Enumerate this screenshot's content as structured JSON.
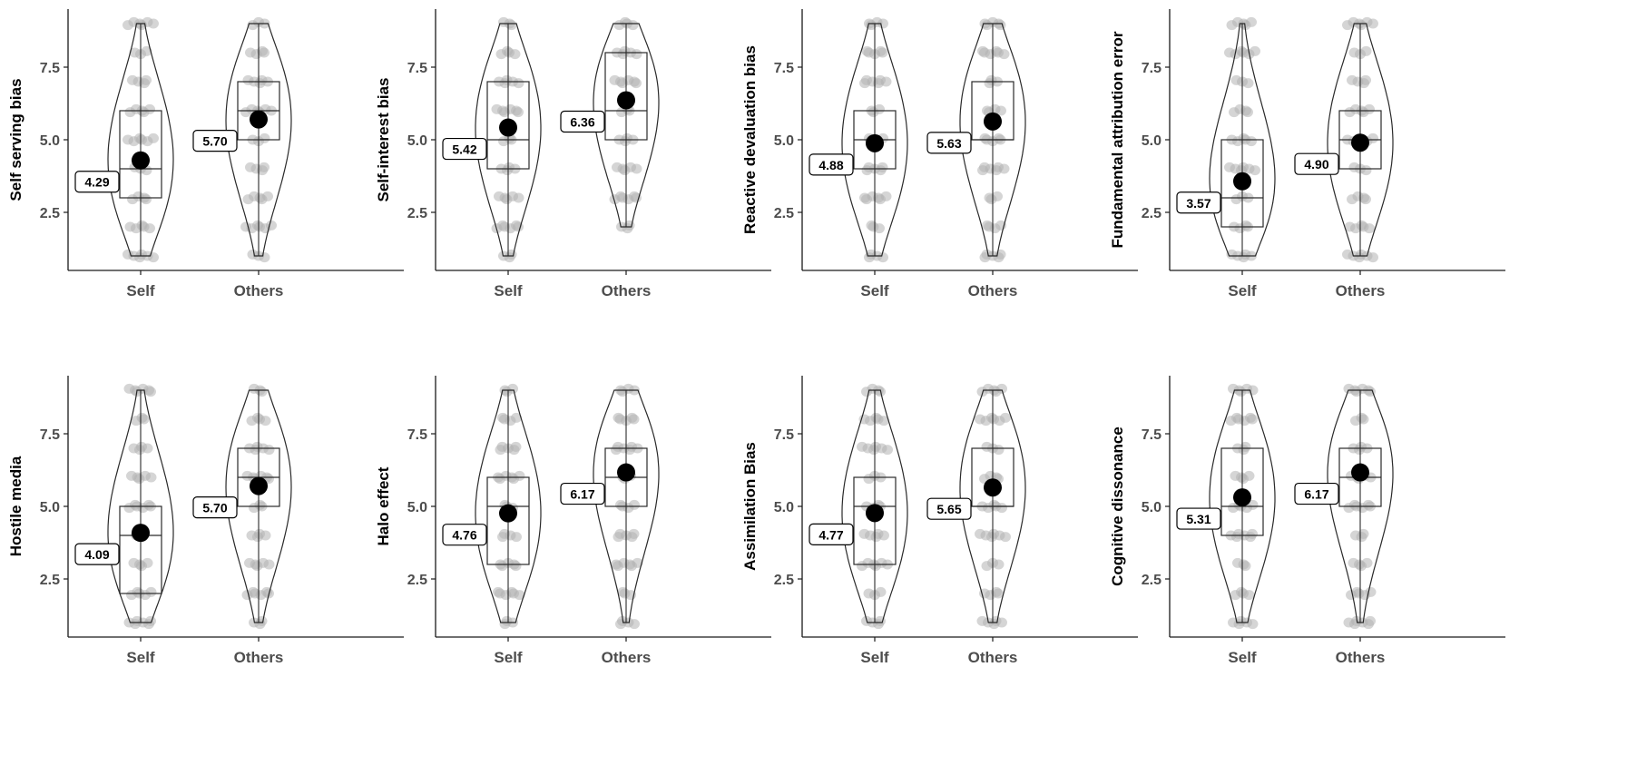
{
  "figure": {
    "colors": {
      "axis": "#1a1a1a",
      "outline": "#2a2a2a",
      "points": "#b3b3b3",
      "mean": "#000000",
      "label_fill": "#ffffff",
      "tick_text": "#4d4d4d"
    }
  },
  "chart_data": [
    {
      "type": "violin",
      "ylabel": "Self serving bias",
      "categories": [
        "Self",
        "Others"
      ],
      "yticks": [
        "2.5",
        "5.0",
        "7.5"
      ],
      "ylim": [
        0.5,
        9.5
      ],
      "means": [
        4.29,
        5.7
      ],
      "mean_labels": [
        "4.29",
        "5.70"
      ],
      "box": [
        {
          "min": 1,
          "q1": 3,
          "median": 4,
          "q3": 6,
          "max": 9
        },
        {
          "min": 1,
          "q1": 5,
          "median": 6,
          "q3": 7,
          "max": 9
        }
      ],
      "points": [
        [
          1,
          2,
          3,
          4,
          5,
          6,
          7,
          8,
          9
        ],
        [
          1,
          2,
          3,
          4,
          5,
          6,
          7,
          8,
          9
        ]
      ]
    },
    {
      "type": "violin",
      "ylabel": "Self-interest bias",
      "categories": [
        "Self",
        "Others"
      ],
      "yticks": [
        "2.5",
        "5.0",
        "7.5"
      ],
      "ylim": [
        0.5,
        9.5
      ],
      "means": [
        5.42,
        6.36
      ],
      "mean_labels": [
        "5.42",
        "6.36"
      ],
      "box": [
        {
          "min": 1,
          "q1": 4,
          "median": 5,
          "q3": 7,
          "max": 9
        },
        {
          "min": 2,
          "q1": 5,
          "median": 6,
          "q3": 8,
          "max": 9
        }
      ],
      "points": [
        [
          1,
          2,
          3,
          4,
          5,
          6,
          7,
          8,
          9
        ],
        [
          2,
          3,
          4,
          5,
          6,
          7,
          8,
          9
        ]
      ]
    },
    {
      "type": "violin",
      "ylabel": "Reactive devaluation bias",
      "categories": [
        "Self",
        "Others"
      ],
      "yticks": [
        "2.5",
        "5.0",
        "7.5"
      ],
      "ylim": [
        0.5,
        9.5
      ],
      "means": [
        4.88,
        5.63
      ],
      "mean_labels": [
        "4.88",
        "5.63"
      ],
      "box": [
        {
          "min": 1,
          "q1": 4,
          "median": 5,
          "q3": 6,
          "max": 9
        },
        {
          "min": 1,
          "q1": 5,
          "median": 5,
          "q3": 7,
          "max": 9
        }
      ],
      "points": [
        [
          1,
          2,
          3,
          4,
          5,
          6,
          7,
          8,
          9
        ],
        [
          1,
          2,
          3,
          4,
          5,
          6,
          7,
          8,
          9
        ]
      ]
    },
    {
      "type": "violin",
      "ylabel": "Fundamental attribution error",
      "categories": [
        "Self",
        "Others"
      ],
      "yticks": [
        "2.5",
        "5.0",
        "7.5"
      ],
      "ylim": [
        0.5,
        9.5
      ],
      "means": [
        3.57,
        4.9
      ],
      "mean_labels": [
        "3.57",
        "4.90"
      ],
      "box": [
        {
          "min": 1,
          "q1": 2,
          "median": 3,
          "q3": 5,
          "max": 9
        },
        {
          "min": 1,
          "q1": 4,
          "median": 5,
          "q3": 6,
          "max": 9
        }
      ],
      "points": [
        [
          1,
          2,
          3,
          4,
          5,
          6,
          7,
          8,
          9
        ],
        [
          1,
          2,
          3,
          4,
          5,
          6,
          7,
          8,
          9
        ]
      ]
    },
    {
      "type": "violin",
      "ylabel": "Hostile media",
      "categories": [
        "Self",
        "Others"
      ],
      "yticks": [
        "2.5",
        "5.0",
        "7.5"
      ],
      "ylim": [
        0.5,
        9.5
      ],
      "means": [
        4.09,
        5.7
      ],
      "mean_labels": [
        "4.09",
        "5.70"
      ],
      "box": [
        {
          "min": 1,
          "q1": 2,
          "median": 4,
          "q3": 5,
          "max": 9
        },
        {
          "min": 1,
          "q1": 5,
          "median": 6,
          "q3": 7,
          "max": 9
        }
      ],
      "points": [
        [
          1,
          2,
          3,
          4,
          5,
          6,
          7,
          8,
          9
        ],
        [
          1,
          2,
          3,
          4,
          5,
          6,
          7,
          8,
          9
        ]
      ]
    },
    {
      "type": "violin",
      "ylabel": "Halo effect",
      "categories": [
        "Self",
        "Others"
      ],
      "yticks": [
        "2.5",
        "5.0",
        "7.5"
      ],
      "ylim": [
        0.5,
        9.5
      ],
      "means": [
        4.76,
        6.17
      ],
      "mean_labels": [
        "4.76",
        "6.17"
      ],
      "box": [
        {
          "min": 1,
          "q1": 3,
          "median": 5,
          "q3": 6,
          "max": 9
        },
        {
          "min": 1,
          "q1": 5,
          "median": 6,
          "q3": 7,
          "max": 9
        }
      ],
      "points": [
        [
          1,
          2,
          3,
          4,
          5,
          6,
          7,
          8,
          9
        ],
        [
          1,
          2,
          3,
          4,
          5,
          6,
          7,
          8,
          9
        ]
      ]
    },
    {
      "type": "violin",
      "ylabel": "Assimilation Bias",
      "categories": [
        "Self",
        "Others"
      ],
      "yticks": [
        "2.5",
        "5.0",
        "7.5"
      ],
      "ylim": [
        0.5,
        9.5
      ],
      "means": [
        4.77,
        5.65
      ],
      "mean_labels": [
        "4.77",
        "5.65"
      ],
      "box": [
        {
          "min": 1,
          "q1": 3,
          "median": 5,
          "q3": 6,
          "max": 9
        },
        {
          "min": 1,
          "q1": 5,
          "median": 5,
          "q3": 7,
          "max": 9
        }
      ],
      "points": [
        [
          1,
          2,
          3,
          4,
          5,
          6,
          7,
          8,
          9
        ],
        [
          1,
          2,
          3,
          4,
          5,
          6,
          7,
          8,
          9
        ]
      ]
    },
    {
      "type": "violin",
      "ylabel": "Cognitive dissonance",
      "categories": [
        "Self",
        "Others"
      ],
      "yticks": [
        "2.5",
        "5.0",
        "7.5"
      ],
      "ylim": [
        0.5,
        9.5
      ],
      "means": [
        5.31,
        6.17
      ],
      "mean_labels": [
        "5.31",
        "6.17"
      ],
      "box": [
        {
          "min": 1,
          "q1": 4,
          "median": 5,
          "q3": 7,
          "max": 9
        },
        {
          "min": 1,
          "q1": 5,
          "median": 6,
          "q3": 7,
          "max": 9
        }
      ],
      "points": [
        [
          1,
          2,
          3,
          4,
          5,
          6,
          7,
          8,
          9
        ],
        [
          1,
          2,
          3,
          4,
          5,
          6,
          7,
          8,
          9
        ]
      ]
    }
  ]
}
